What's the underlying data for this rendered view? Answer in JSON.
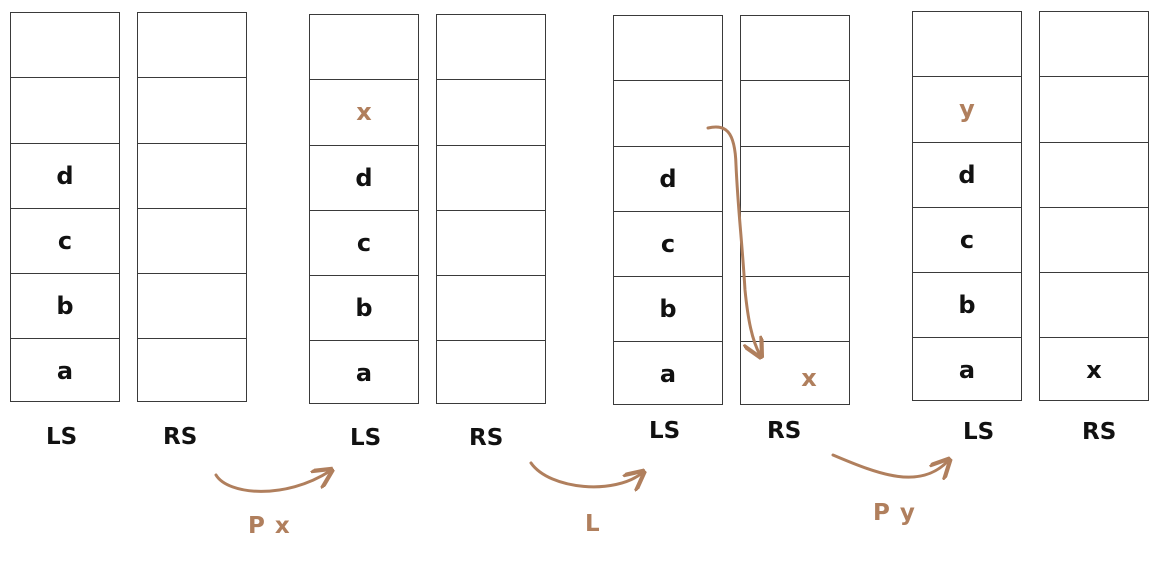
{
  "colors": {
    "accent": "#b07f5d",
    "text": "#111111",
    "border": "#3a3a3a"
  },
  "states": [
    {
      "left": {
        "label": "LS",
        "cells": [
          "",
          "",
          "d",
          "c",
          "b",
          "a"
        ]
      },
      "right": {
        "label": "RS",
        "cells": [
          "",
          "",
          "",
          "",
          "",
          ""
        ]
      }
    },
    {
      "left": {
        "label": "LS",
        "cells": [
          "",
          "x",
          "d",
          "c",
          "b",
          "a"
        ]
      },
      "right": {
        "label": "RS",
        "cells": [
          "",
          "",
          "",
          "",
          "",
          ""
        ]
      }
    },
    {
      "left": {
        "label": "LS",
        "cells": [
          "",
          "",
          "d",
          "c",
          "b",
          "a"
        ]
      },
      "right": {
        "label": "RS",
        "cells": [
          "",
          "",
          "",
          "",
          "",
          "x"
        ]
      }
    },
    {
      "left": {
        "label": "LS",
        "cells": [
          "",
          "y",
          "d",
          "c",
          "b",
          "a"
        ]
      },
      "right": {
        "label": "RS",
        "cells": [
          "",
          "",
          "",
          "",
          "",
          "x"
        ]
      }
    }
  ],
  "operations": [
    "P x",
    "L",
    "P y"
  ]
}
